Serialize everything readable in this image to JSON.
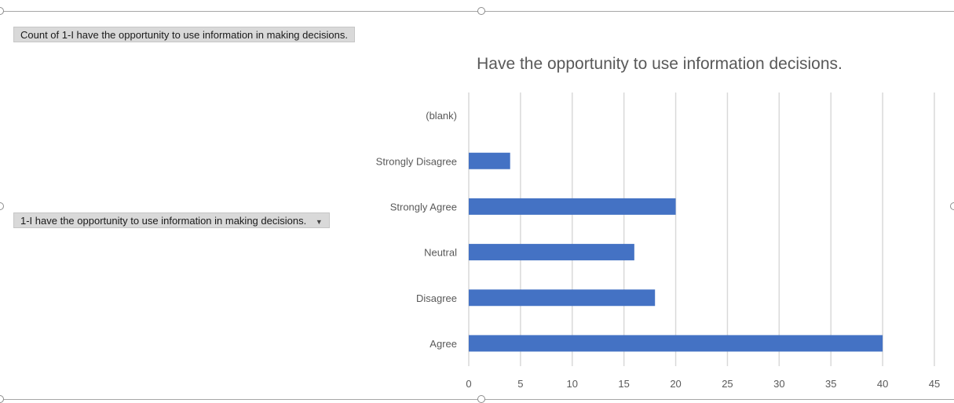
{
  "field_buttons": {
    "values_label": "Count of 1-I have the opportunity to use information in making decisions.",
    "axis_label": "1-I have the opportunity to use information in making decisions.",
    "axis_dropdown_icon": "chevron-down-icon"
  },
  "colors": {
    "bar": "#4472c4",
    "gridline": "#d9d9d9",
    "text": "#595959"
  },
  "chart_data": {
    "type": "bar",
    "orientation": "horizontal",
    "title": "Have the opportunity to use information decisions.",
    "categories": [
      "(blank)",
      "Strongly Disagree",
      "Strongly Agree",
      "Neutral",
      "Disagree",
      "Agree"
    ],
    "values": [
      0,
      4,
      20,
      16,
      18,
      40
    ],
    "xlim": [
      0,
      45
    ],
    "xticks": [
      0,
      5,
      10,
      15,
      20,
      25,
      30,
      35,
      40,
      45
    ],
    "grid": true,
    "legend": "none"
  }
}
